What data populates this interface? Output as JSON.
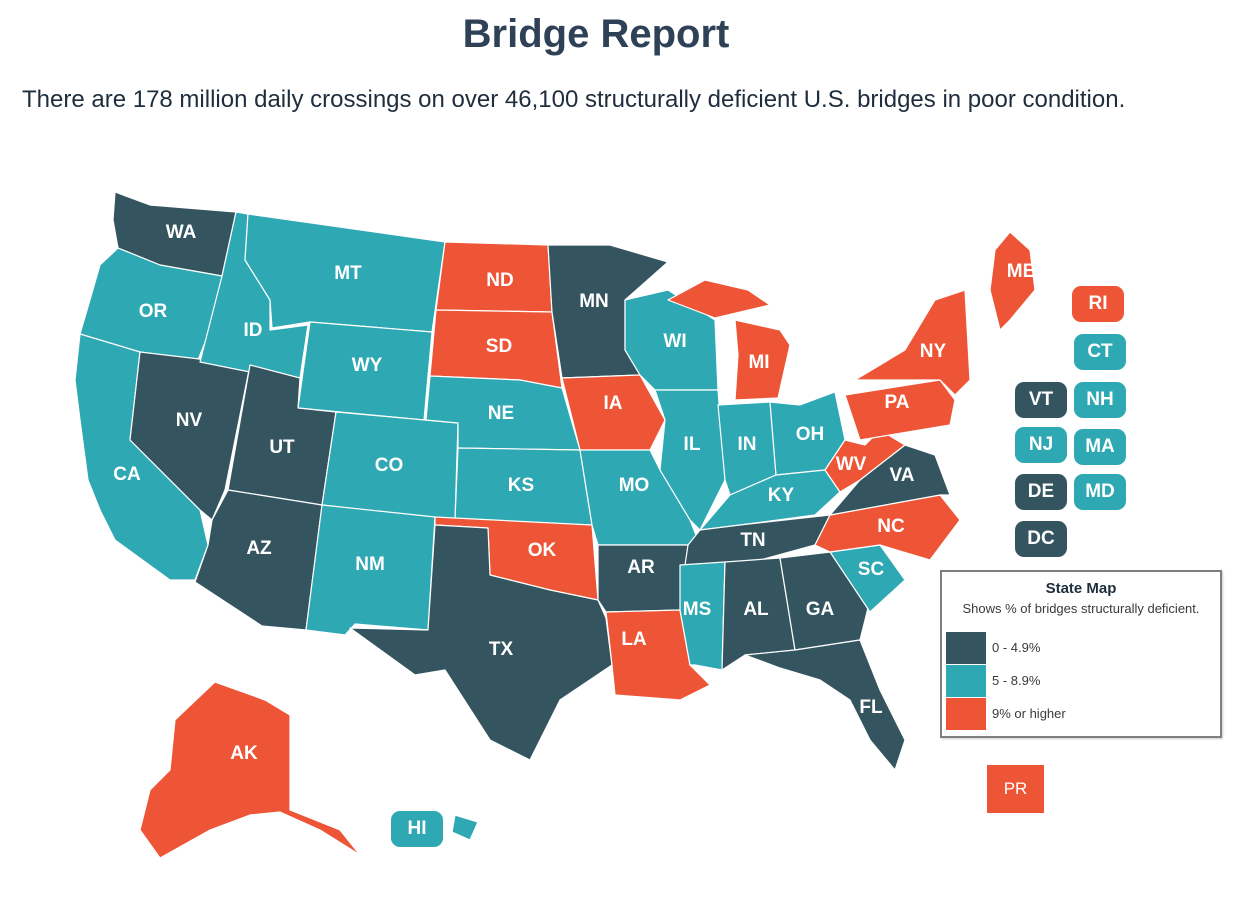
{
  "header": {
    "title": "Bridge Report",
    "subtitle": "There are 178 million daily crossings on over 46,100 structurally deficient U.S. bridges in poor condition."
  },
  "colors": {
    "low": "#34555f",
    "mid": "#2ea8b3",
    "high": "#ee5537"
  },
  "legend": {
    "title": "State Map",
    "subtitle": "Shows % of bridges structurally deficient.",
    "items": [
      {
        "label": "0 - 4.9%",
        "category": "low"
      },
      {
        "label": "5 - 8.9%",
        "category": "mid"
      },
      {
        "label": "9% or higher",
        "category": "high"
      }
    ]
  },
  "states": [
    {
      "code": "WA",
      "category": "low"
    },
    {
      "code": "OR",
      "category": "mid"
    },
    {
      "code": "CA",
      "category": "mid"
    },
    {
      "code": "NV",
      "category": "low"
    },
    {
      "code": "ID",
      "category": "mid"
    },
    {
      "code": "MT",
      "category": "mid"
    },
    {
      "code": "WY",
      "category": "mid"
    },
    {
      "code": "UT",
      "category": "low"
    },
    {
      "code": "AZ",
      "category": "low"
    },
    {
      "code": "CO",
      "category": "mid"
    },
    {
      "code": "NM",
      "category": "mid"
    },
    {
      "code": "ND",
      "category": "high"
    },
    {
      "code": "SD",
      "category": "high"
    },
    {
      "code": "NE",
      "category": "mid"
    },
    {
      "code": "KS",
      "category": "mid"
    },
    {
      "code": "OK",
      "category": "high"
    },
    {
      "code": "TX",
      "category": "low"
    },
    {
      "code": "MN",
      "category": "low"
    },
    {
      "code": "IA",
      "category": "high"
    },
    {
      "code": "MO",
      "category": "mid"
    },
    {
      "code": "AR",
      "category": "low"
    },
    {
      "code": "LA",
      "category": "high"
    },
    {
      "code": "WI",
      "category": "mid"
    },
    {
      "code": "IL",
      "category": "mid"
    },
    {
      "code": "MI",
      "category": "high"
    },
    {
      "code": "IN",
      "category": "mid"
    },
    {
      "code": "OH",
      "category": "mid"
    },
    {
      "code": "KY",
      "category": "mid"
    },
    {
      "code": "TN",
      "category": "low"
    },
    {
      "code": "MS",
      "category": "mid"
    },
    {
      "code": "AL",
      "category": "low"
    },
    {
      "code": "GA",
      "category": "low"
    },
    {
      "code": "FL",
      "category": "low"
    },
    {
      "code": "SC",
      "category": "mid"
    },
    {
      "code": "NC",
      "category": "high"
    },
    {
      "code": "VA",
      "category": "low"
    },
    {
      "code": "WV",
      "category": "high"
    },
    {
      "code": "PA",
      "category": "high"
    },
    {
      "code": "NY",
      "category": "high"
    },
    {
      "code": "ME",
      "category": "high"
    },
    {
      "code": "AK",
      "category": "high"
    },
    {
      "code": "HI",
      "category": "mid"
    }
  ],
  "small_states": [
    {
      "code": "RI",
      "category": "high"
    },
    {
      "code": "CT",
      "category": "mid"
    },
    {
      "code": "VT",
      "category": "low"
    },
    {
      "code": "NH",
      "category": "mid"
    },
    {
      "code": "NJ",
      "category": "mid"
    },
    {
      "code": "MA",
      "category": "mid"
    },
    {
      "code": "DE",
      "category": "low"
    },
    {
      "code": "MD",
      "category": "mid"
    },
    {
      "code": "DC",
      "category": "low"
    }
  ],
  "territories": [
    {
      "code": "PR",
      "category": "high"
    }
  ]
}
